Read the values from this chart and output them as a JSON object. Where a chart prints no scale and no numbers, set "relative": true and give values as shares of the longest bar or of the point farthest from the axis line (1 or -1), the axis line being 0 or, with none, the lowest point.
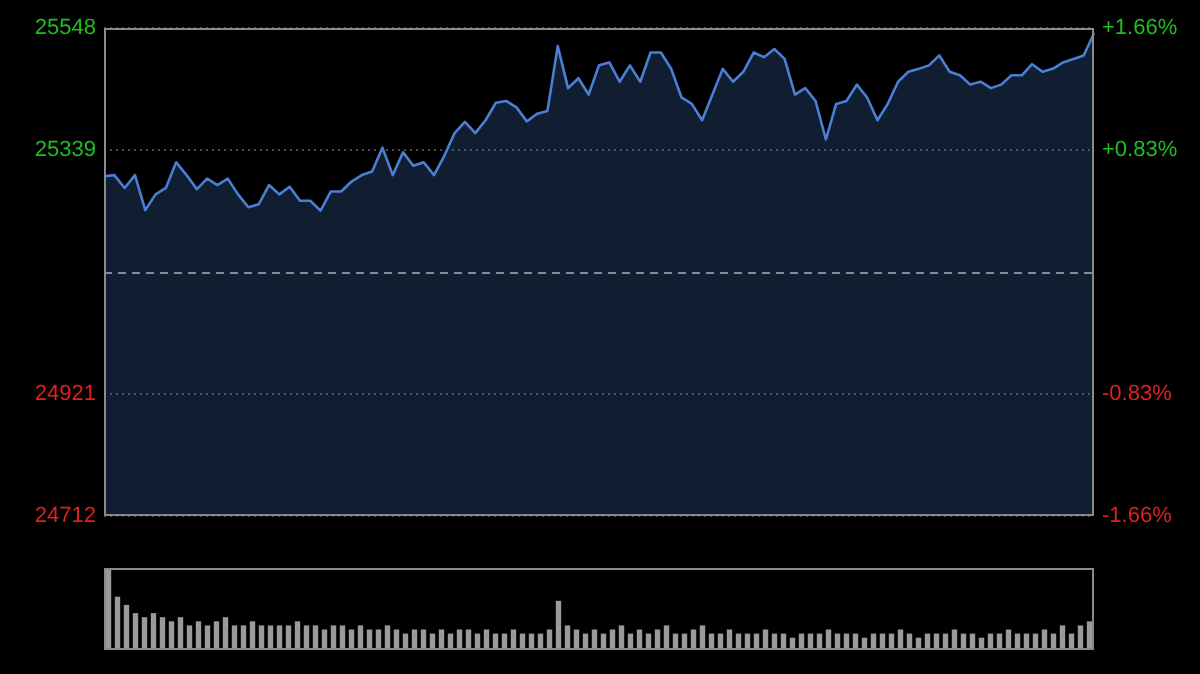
{
  "chart_data": [
    {
      "type": "area",
      "categories": [
        null,
        null,
        null,
        null,
        null,
        null,
        null,
        null,
        null,
        null,
        null,
        null,
        null,
        null,
        null,
        null,
        null,
        null,
        null,
        null,
        null,
        null,
        null,
        null,
        null,
        null,
        null,
        null,
        null,
        null,
        null,
        null,
        null,
        null,
        null,
        null,
        null,
        null,
        null,
        null,
        null,
        null,
        null,
        null,
        null,
        null,
        null,
        null,
        null,
        null,
        null,
        null,
        null,
        null,
        null,
        null,
        null,
        null,
        null,
        null,
        null,
        null,
        null,
        null,
        null,
        null,
        null,
        null,
        null,
        null,
        null,
        null,
        null,
        null,
        null,
        null,
        null,
        null,
        null,
        null,
        null,
        null,
        null,
        null,
        null,
        null,
        null,
        null,
        null,
        null,
        null,
        null,
        null,
        null,
        null,
        null,
        null
      ],
      "series": [
        {
          "color": "#4a7fd4",
          "values": [
            25294,
            25296,
            25274,
            25296,
            25236,
            25263,
            25274,
            25318,
            25296,
            25272,
            25290,
            25279,
            25290,
            25263,
            25241,
            25246,
            25279,
            25263,
            25276,
            25252,
            25252,
            25235,
            25268,
            25268,
            25285,
            25296,
            25302,
            25343,
            25296,
            25335,
            25312,
            25318,
            25296,
            25329,
            25368,
            25387,
            25368,
            25390,
            25420,
            25423,
            25412,
            25388,
            25401,
            25406,
            25517,
            25445,
            25462,
            25434,
            25484,
            25489,
            25456,
            25484,
            25456,
            25506,
            25506,
            25478,
            25429,
            25418,
            25390,
            25434,
            25478,
            25456,
            25473,
            25506,
            25498,
            25512,
            25495,
            25434,
            25445,
            25423,
            25357,
            25418,
            25423,
            25451,
            25429,
            25390,
            25418,
            25456,
            25473,
            25478,
            25484,
            25501,
            25473,
            25467,
            25451,
            25456,
            25445,
            25451,
            25467,
            25467,
            25486,
            25473,
            25478,
            25489,
            25495,
            25501,
            25539
          ]
        }
      ],
      "ylim": [
        24712,
        25548
      ],
      "yticks": [
        24712,
        24921,
        25339,
        25548
      ],
      "y2lim": [
        -1.66,
        1.66
      ],
      "y2ticks": [
        {
          "value": -1.66,
          "label": "-1.66%"
        },
        {
          "value": -0.83,
          "label": "-0.83%"
        },
        {
          "value": 0.83,
          "label": "+0.83%"
        },
        {
          "value": 1.66,
          "label": "+1.66%"
        }
      ],
      "ref_lines": [
        {
          "axis": "y",
          "value": 25130,
          "color": "#7f8c99",
          "line_style": "dashed"
        }
      ],
      "grid": "y",
      "tick_labels": "y",
      "marker": "none"
    },
    {
      "type": "bar",
      "relative": true,
      "color": "#9a9a9a",
      "tick_labels": false,
      "categories": [
        null,
        null,
        null,
        null,
        null,
        null,
        null,
        null,
        null,
        null,
        null,
        null,
        null,
        null,
        null,
        null,
        null,
        null,
        null,
        null,
        null,
        null,
        null,
        null,
        null,
        null,
        null,
        null,
        null,
        null,
        null,
        null,
        null,
        null,
        null,
        null,
        null,
        null,
        null,
        null,
        null,
        null,
        null,
        null,
        null,
        null,
        null,
        null,
        null,
        null,
        null,
        null,
        null,
        null,
        null,
        null,
        null,
        null,
        null,
        null,
        null,
        null,
        null,
        null,
        null,
        null,
        null,
        null,
        null,
        null,
        null,
        null,
        null,
        null,
        null,
        null,
        null,
        null,
        null,
        null,
        null,
        null,
        null,
        null,
        null,
        null,
        null,
        null,
        null,
        null,
        null,
        null,
        null,
        null,
        null,
        null,
        null,
        null,
        null,
        null,
        null,
        null,
        null,
        null,
        null,
        null,
        null,
        null,
        null,
        null
      ],
      "values": [
        1,
        0.65,
        0.55,
        0.45,
        0.4,
        0.45,
        0.4,
        0.35,
        0.4,
        0.3,
        0.35,
        0.3,
        0.35,
        0.4,
        0.3,
        0.3,
        0.35,
        0.3,
        0.3,
        0.3,
        0.3,
        0.35,
        0.3,
        0.3,
        0.25,
        0.3,
        0.3,
        0.25,
        0.3,
        0.25,
        0.25,
        0.3,
        0.25,
        0.2,
        0.25,
        0.25,
        0.2,
        0.25,
        0.2,
        0.25,
        0.25,
        0.2,
        0.25,
        0.2,
        0.2,
        0.25,
        0.2,
        0.2,
        0.2,
        0.25,
        0.6,
        0.3,
        0.25,
        0.2,
        0.25,
        0.2,
        0.25,
        0.3,
        0.2,
        0.25,
        0.2,
        0.25,
        0.3,
        0.2,
        0.2,
        0.25,
        0.3,
        0.2,
        0.2,
        0.25,
        0.2,
        0.2,
        0.2,
        0.25,
        0.2,
        0.2,
        0.15,
        0.2,
        0.2,
        0.2,
        0.25,
        0.2,
        0.2,
        0.2,
        0.15,
        0.2,
        0.2,
        0.2,
        0.25,
        0.2,
        0.15,
        0.2,
        0.2,
        0.2,
        0.25,
        0.2,
        0.2,
        0.15,
        0.2,
        0.2,
        0.25,
        0.2,
        0.2,
        0.2,
        0.25,
        0.2,
        0.3,
        0.2,
        0.3,
        0.35
      ]
    }
  ]
}
